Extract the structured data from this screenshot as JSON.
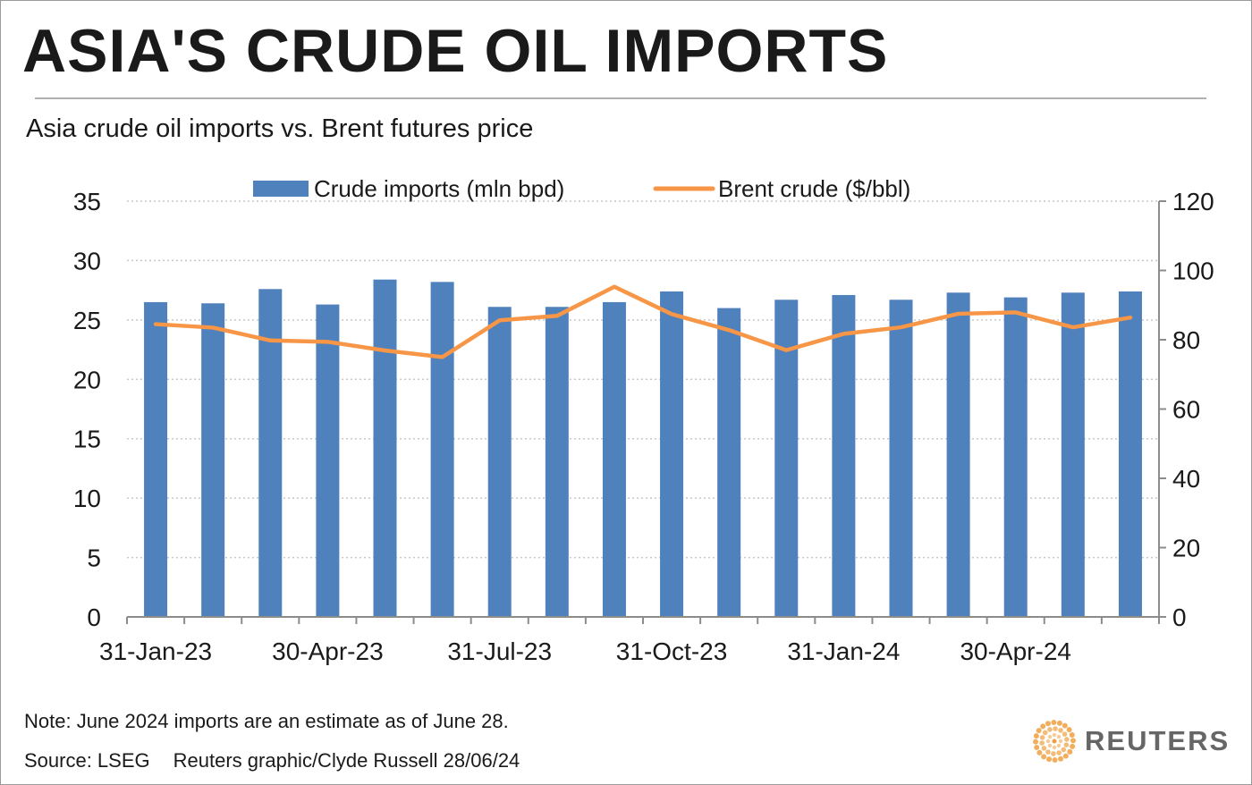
{
  "title": "ASIA'S CRUDE OIL IMPORTS",
  "subtitle": "Asia crude oil imports vs. Brent futures price",
  "note": "Note: June 2024 imports are an estimate as of June 28.",
  "source": "Source: LSEG",
  "credit": "Reuters graphic/Clyde Russell 28/06/24",
  "logo_text": "REUTERS",
  "colors": {
    "bars": "#4f81bd",
    "line": "#f79646",
    "axis": "#8c8c8c",
    "grid": "#c8c8c8",
    "text": "#1a1a1a",
    "logo_orange": "#f0a040"
  },
  "chart_data": {
    "type": "bar",
    "categories": [
      "Jan-23",
      "Feb-23",
      "Mar-23",
      "Apr-23",
      "May-23",
      "Jun-23",
      "Jul-23",
      "Aug-23",
      "Sep-23",
      "Oct-23",
      "Nov-23",
      "Dec-23",
      "Jan-24",
      "Feb-24",
      "Mar-24",
      "Apr-24",
      "May-24",
      "Jun-24"
    ],
    "x_tick_labels": [
      {
        "index": 0,
        "label": "31-Jan-23"
      },
      {
        "index": 3,
        "label": "30-Apr-23"
      },
      {
        "index": 6,
        "label": "31-Jul-23"
      },
      {
        "index": 9,
        "label": "31-Oct-23"
      },
      {
        "index": 12,
        "label": "31-Jan-24"
      },
      {
        "index": 15,
        "label": "30-Apr-24"
      }
    ],
    "series": [
      {
        "name": "Crude imports (mln bpd)",
        "type": "bar",
        "axis": "left",
        "values": [
          26.5,
          26.4,
          27.6,
          26.3,
          28.4,
          28.2,
          26.1,
          26.1,
          26.5,
          27.4,
          26.0,
          26.7,
          27.1,
          26.7,
          27.3,
          26.9,
          27.3,
          27.4
        ]
      },
      {
        "name": "Brent crude ($/bbl)",
        "type": "line",
        "axis": "right",
        "values": [
          84.5,
          83.5,
          79.8,
          79.4,
          76.9,
          75.0,
          85.6,
          86.9,
          95.3,
          87.4,
          82.8,
          77.0,
          81.7,
          83.6,
          87.5,
          87.9,
          83.6,
          86.4
        ]
      }
    ],
    "y_left": {
      "min": 0,
      "max": 35,
      "ticks": [
        0,
        5,
        10,
        15,
        20,
        25,
        30,
        35
      ]
    },
    "y_right": {
      "min": 0,
      "max": 120,
      "ticks": [
        0,
        20,
        40,
        60,
        80,
        100,
        120
      ]
    },
    "grid": true,
    "legend_position": "top"
  }
}
